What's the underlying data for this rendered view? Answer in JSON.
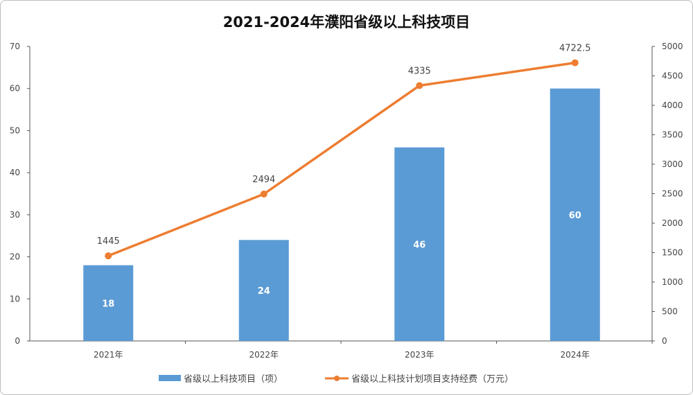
{
  "chart_data": {
    "type": "bar",
    "title": "2021-2024年濮阳省级以上科技项目",
    "categories": [
      "2021年",
      "2022年",
      "2023年",
      "2024年"
    ],
    "series": [
      {
        "name": "省级以上科技项目（项）",
        "type": "bar",
        "axis": "left",
        "values": [
          18,
          24,
          46,
          60
        ],
        "color": "#5b9bd5"
      },
      {
        "name": "省级以上科技计划项目支持经费（万元）",
        "type": "line",
        "axis": "right",
        "values": [
          1445,
          2494,
          4335,
          4722.5
        ],
        "color": "#ed7d31"
      }
    ],
    "y_left": {
      "range": [
        0,
        70
      ],
      "ticks": [
        0,
        10,
        20,
        30,
        40,
        50,
        60,
        70
      ]
    },
    "y_right": {
      "range": [
        0,
        5000
      ],
      "ticks": [
        0,
        500,
        1000,
        1500,
        2000,
        2500,
        3000,
        3500,
        4000,
        4500,
        5000
      ]
    },
    "grid": false,
    "legend": "bottom"
  }
}
